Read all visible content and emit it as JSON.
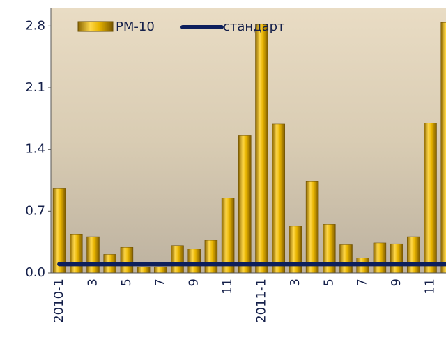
{
  "chart_data": {
    "type": "bar",
    "categories": [
      "2010-1",
      null,
      "3",
      null,
      "5",
      null,
      "7",
      null,
      "9",
      null,
      "11",
      null,
      "2011-1",
      null,
      "3",
      null,
      "5",
      null,
      "7",
      null,
      "9",
      null,
      "11",
      null
    ],
    "series": [
      {
        "name": "PM-10",
        "type": "bar",
        "color": "#e8b400",
        "values": [
          0.96,
          0.44,
          0.41,
          0.21,
          0.29,
          0.07,
          0.07,
          0.31,
          0.27,
          0.37,
          0.85,
          1.56,
          2.82,
          1.69,
          0.53,
          1.04,
          0.55,
          0.32,
          0.17,
          0.34,
          0.33,
          0.41,
          1.7,
          2.84
        ]
      },
      {
        "name": "стандарт",
        "type": "line",
        "color": "#0d1f5c",
        "values": [
          0.1,
          0.1,
          0.1,
          0.1,
          0.1,
          0.1,
          0.1,
          0.1,
          0.1,
          0.1,
          0.1,
          0.1,
          0.1,
          0.1,
          0.1,
          0.1,
          0.1,
          0.1,
          0.1,
          0.1,
          0.1,
          0.1,
          0.1,
          0.1
        ]
      }
    ],
    "ylim": [
      0,
      3.0
    ],
    "yticks": [
      {
        "value": 0,
        "label": "0.0"
      },
      0.7,
      1.4,
      2.1,
      2.8
    ],
    "grid": false
  }
}
